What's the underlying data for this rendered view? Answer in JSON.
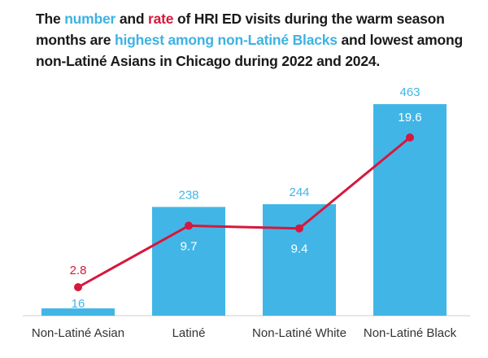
{
  "title": {
    "t1": "The ",
    "number": "number",
    "t2": " and ",
    "rate": "rate",
    "t3": " of HRI ED visits during the warm season months are ",
    "highlight": "highest among non-Latiné Blacks",
    "t4": " and lowest among non-Latiné Asians in Chicago during 2022 and 2024."
  },
  "chart_data": {
    "type": "bar",
    "categories": [
      "Non-Latiné Asian",
      "Latiné",
      "Non-Latiné White",
      "Non-Latiné Black"
    ],
    "series": [
      {
        "name": "number",
        "kind": "bar",
        "values": [
          16,
          238,
          244,
          463
        ],
        "color": "#41b6e6"
      },
      {
        "name": "rate",
        "kind": "line",
        "values": [
          2.8,
          9.7,
          9.4,
          19.6
        ],
        "color": "#d7173c"
      }
    ],
    "label_colors": {
      "number": "#41b6e6",
      "number_inside": "#ffffff",
      "rate": "#d7173c",
      "rate_inside": "#ffffff"
    },
    "grid": false,
    "legend": "none"
  }
}
